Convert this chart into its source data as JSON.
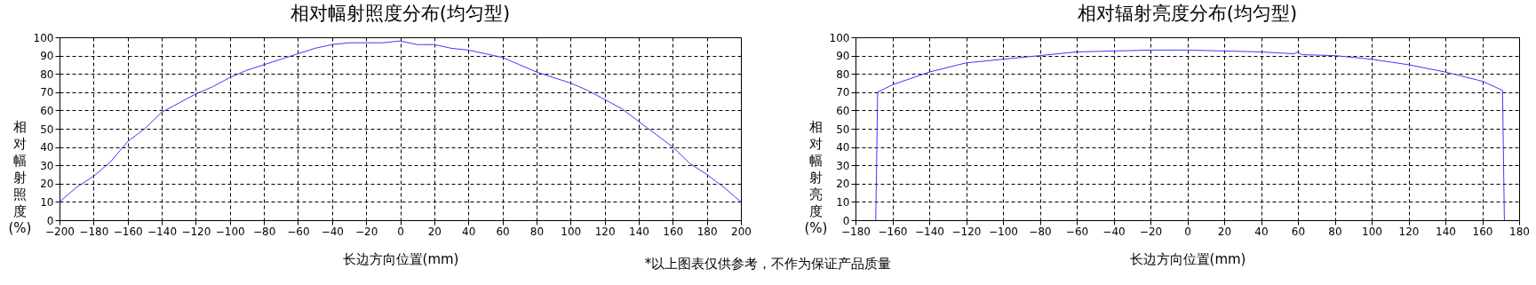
{
  "chart_data": [
    {
      "type": "line",
      "title": "相对幅射照度分布(均匀型)",
      "xlabel": "长边方向位置(mm)",
      "ylabel": "相对幅射照度(%)",
      "annotations": [
        "*以上图表仅供参考，不作为保证产品质量"
      ],
      "x": [
        -200,
        -190,
        -180,
        -170,
        -160,
        -150,
        -140,
        -130,
        -120,
        -110,
        -100,
        -90,
        -80,
        -70,
        -60,
        -50,
        -40,
        -30,
        -20,
        -10,
        0,
        10,
        20,
        30,
        40,
        50,
        60,
        70,
        80,
        90,
        100,
        110,
        120,
        130,
        140,
        150,
        160,
        170,
        180,
        190,
        200
      ],
      "series": [
        {
          "color": "#3a3aff",
          "values": [
            10,
            18,
            24,
            32,
            43,
            50,
            59,
            64,
            69,
            73,
            78,
            82,
            85,
            88,
            91,
            94,
            96,
            97,
            97,
            97,
            98,
            96,
            96,
            94,
            93,
            91,
            89,
            85,
            81,
            78,
            75,
            71,
            66,
            61,
            54,
            47,
            40,
            31,
            25,
            18,
            10
          ]
        }
      ],
      "xlim": [
        -200,
        200
      ],
      "xticks": [
        -200,
        -180,
        -160,
        -140,
        -120,
        -100,
        -80,
        -60,
        -40,
        -20,
        0,
        20,
        40,
        60,
        80,
        100,
        120,
        140,
        160,
        180,
        200
      ],
      "ylim": [
        0,
        100
      ],
      "yticks": [
        0,
        10,
        20,
        30,
        40,
        50,
        60,
        70,
        80,
        90,
        100
      ],
      "grid": true,
      "line_style": "solid",
      "legend": false
    },
    {
      "type": "line",
      "title": "相对辐射亮度分布(均匀型)",
      "xlabel": "长边方向位置(mm)",
      "ylabel": "相对幅射亮度(%)",
      "x": [
        -169,
        -168,
        -160,
        -140,
        -120,
        -100,
        -80,
        -60,
        -40,
        -20,
        0,
        20,
        40,
        58,
        60,
        62,
        80,
        100,
        120,
        140,
        160,
        171,
        172
      ],
      "series": [
        {
          "color": "#3a3aff",
          "values": [
            0,
            70,
            74,
            81,
            86,
            88,
            90,
            92,
            92.5,
            93,
            93,
            92.5,
            92,
            91,
            92,
            90.5,
            90,
            88,
            85,
            81,
            76,
            71,
            0
          ]
        }
      ],
      "xlim": [
        -180,
        180
      ],
      "xticks": [
        -180,
        -160,
        -140,
        -120,
        -100,
        -80,
        -60,
        -40,
        -20,
        0,
        20,
        40,
        60,
        80,
        100,
        120,
        140,
        160,
        180
      ],
      "ylim": [
        0,
        100
      ],
      "yticks": [
        0,
        10,
        20,
        30,
        40,
        50,
        60,
        70,
        80,
        90,
        100
      ],
      "grid": true,
      "line_style": "solid",
      "legend": false
    }
  ]
}
